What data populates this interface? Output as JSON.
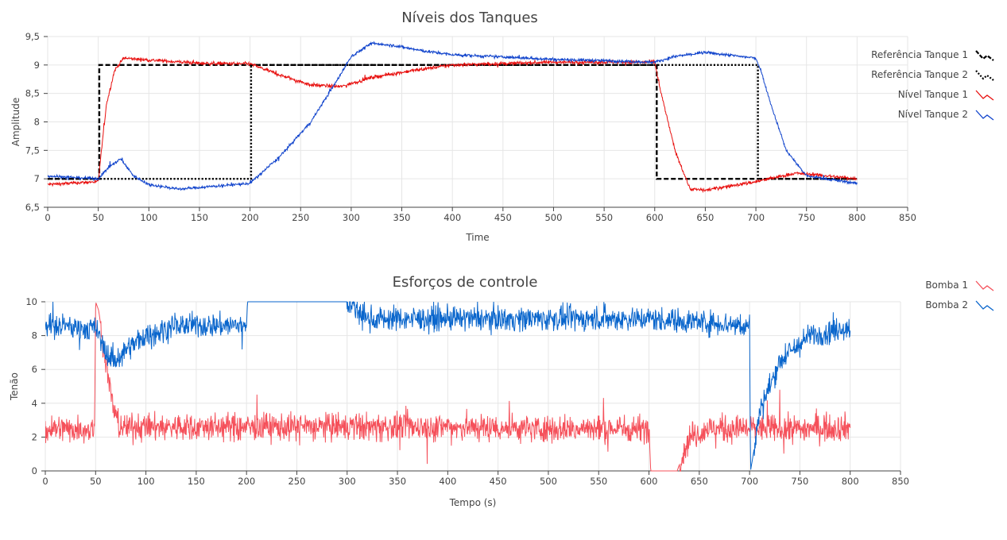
{
  "chart_data": [
    {
      "type": "line",
      "title": "Níveis dos Tanques",
      "xlabel": "Time",
      "ylabel": "Amplitude",
      "xlim": [
        0,
        850
      ],
      "ylim": [
        6.5,
        9.5
      ],
      "x_ticks": [
        "0",
        "50",
        "100",
        "150",
        "200",
        "250",
        "300",
        "350",
        "400",
        "450",
        "500",
        "550",
        "600",
        "650",
        "700",
        "750",
        "800",
        "850"
      ],
      "y_ticks": [
        "6,5",
        "7",
        "7,5",
        "8",
        "8,5",
        "9",
        "9,5"
      ],
      "grid": true,
      "legend_position": "right",
      "series": [
        {
          "name": "Referência Tanque 1",
          "color": "#000000",
          "dash": "dashed",
          "x": [
            0,
            51,
            51,
            602,
            602,
            800
          ],
          "y": [
            7,
            7,
            9,
            9,
            7,
            7
          ]
        },
        {
          "name": "Referência Tanque 2",
          "color": "#000000",
          "dash": "dotted",
          "x": [
            0,
            201,
            201,
            702,
            702,
            800
          ],
          "y": [
            7,
            7,
            9,
            9,
            7,
            7
          ]
        },
        {
          "name": "Nível Tanque 1",
          "color": "#e8100f",
          "dash": "solid",
          "noise": 0.03,
          "x": [
            0,
            50,
            52,
            58,
            66,
            75,
            90,
            150,
            200,
            230,
            260,
            290,
            320,
            360,
            400,
            500,
            600,
            605,
            620,
            635,
            650,
            700,
            740,
            800
          ],
          "y": [
            6.9,
            6.95,
            7.3,
            8.3,
            8.9,
            9.12,
            9.1,
            9.03,
            9.02,
            8.82,
            8.65,
            8.62,
            8.78,
            8.9,
            9.0,
            9.05,
            9.05,
            8.6,
            7.5,
            6.82,
            6.8,
            6.95,
            7.1,
            7.0
          ]
        },
        {
          "name": "Nível Tanque 2",
          "color": "#1144cc",
          "dash": "solid",
          "noise": 0.025,
          "x": [
            0,
            50,
            60,
            72,
            85,
            100,
            130,
            200,
            230,
            260,
            285,
            300,
            320,
            340,
            370,
            400,
            500,
            600,
            620,
            650,
            700,
            705,
            715,
            730,
            750,
            800
          ],
          "y": [
            7.05,
            7.0,
            7.2,
            7.35,
            7.05,
            6.9,
            6.82,
            6.92,
            7.4,
            8.0,
            8.7,
            9.15,
            9.38,
            9.35,
            9.25,
            9.18,
            9.1,
            9.05,
            9.15,
            9.22,
            9.12,
            8.9,
            8.3,
            7.5,
            7.05,
            6.92
          ]
        }
      ]
    },
    {
      "type": "line",
      "title": "Esforços de controle",
      "xlabel": "Tempo (s)",
      "ylabel": "Tenão",
      "xlim": [
        0,
        850
      ],
      "ylim": [
        0,
        10
      ],
      "x_ticks": [
        "0",
        "50",
        "100",
        "150",
        "200",
        "250",
        "300",
        "350",
        "400",
        "450",
        "500",
        "550",
        "600",
        "650",
        "700",
        "750",
        "800",
        "850"
      ],
      "y_ticks": [
        "0",
        "2",
        "4",
        "6",
        "8",
        "10"
      ],
      "grid": true,
      "legend_position": "top-right",
      "series": [
        {
          "name": "Bomba 1",
          "color": "#f5505a",
          "dash": "solid",
          "noise": 0.8,
          "x": [
            0,
            49,
            50,
            53,
            60,
            68,
            75,
            100,
            200,
            300,
            400,
            500,
            600,
            602,
            603,
            628,
            640,
            660,
            700,
            750,
            800
          ],
          "y": [
            2.5,
            2.5,
            10,
            9.5,
            6.5,
            3.5,
            2.6,
            2.6,
            2.6,
            2.6,
            2.6,
            2.5,
            2.5,
            0,
            0,
            0,
            2.0,
            2.5,
            2.5,
            2.5,
            2.6
          ],
          "clean_ranges": [
            [
              50,
              55
            ],
            [
              602,
              630
            ]
          ]
        },
        {
          "name": "Bomba 2",
          "color": "#0a66cc",
          "dash": "solid",
          "noise": 0.7,
          "x": [
            0,
            50,
            60,
            70,
            80,
            100,
            130,
            200,
            201,
            300,
            320,
            400,
            500,
            600,
            700,
            701,
            705,
            710,
            730,
            760,
            800
          ],
          "y": [
            8.6,
            8.4,
            7.0,
            6.5,
            7.2,
            8.0,
            8.6,
            8.6,
            10,
            10,
            9.0,
            9.0,
            9.0,
            9.0,
            8.6,
            0,
            1.5,
            3.5,
            6.5,
            8.0,
            8.5
          ],
          "clean_ranges": [
            [
              200,
              300
            ],
            [
              700,
              704
            ]
          ]
        }
      ]
    }
  ]
}
